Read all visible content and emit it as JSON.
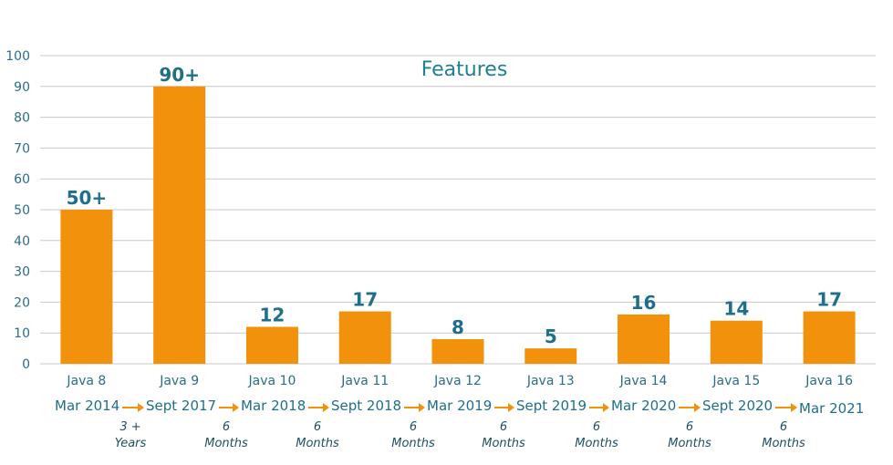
{
  "chart_data": {
    "type": "bar",
    "title": "Features",
    "categories": [
      "Java 8",
      "Java 9",
      "Java 10",
      "Java 11",
      "Java 12",
      "Java 13",
      "Java 14",
      "Java 15",
      "Java 16"
    ],
    "values": [
      50,
      90,
      12,
      17,
      8,
      5,
      16,
      14,
      17
    ],
    "data_labels": [
      "50+",
      "90+",
      "12",
      "17",
      "8",
      "5",
      "16",
      "14",
      "17"
    ],
    "ylim": [
      0,
      100
    ],
    "yticks": [
      0,
      10,
      20,
      30,
      40,
      50,
      60,
      70,
      80,
      90,
      100
    ],
    "grid": true,
    "bar_color": "#f2920c"
  },
  "timeline": {
    "dates": [
      "Mar 2014",
      "Sept 2017",
      "Mar 2018",
      "Sept 2018",
      "Mar 2019",
      "Sept 2019",
      "Mar 2020",
      "Sept 2020",
      "Mar 2021"
    ],
    "gaps": [
      {
        "num": "3 +",
        "unit": "Years"
      },
      {
        "num": "6",
        "unit": "Months"
      },
      {
        "num": "6",
        "unit": "Months"
      },
      {
        "num": "6",
        "unit": "Months"
      },
      {
        "num": "6",
        "unit": "Months"
      },
      {
        "num": "6",
        "unit": "Months"
      },
      {
        "num": "6",
        "unit": "Months"
      },
      {
        "num": "6",
        "unit": "Months"
      }
    ],
    "arrow_color": "#f2920c"
  }
}
